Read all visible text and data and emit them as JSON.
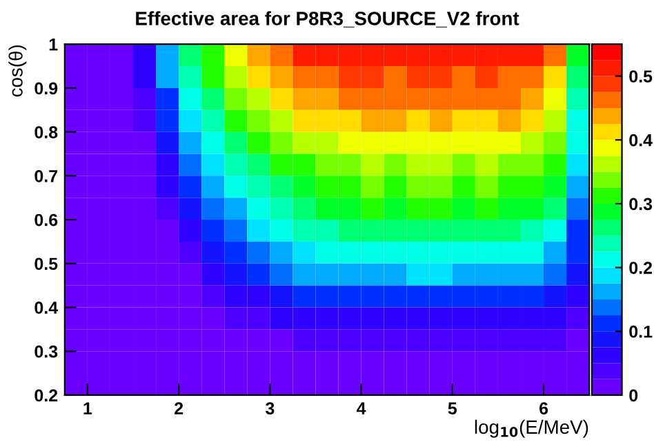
{
  "chart_data": {
    "type": "heatmap",
    "title": "Effective area for P8R3_SOURCE_V2 front",
    "xlabel": "log$_{10}$(E/MeV)",
    "ylabel": "cos(θ)",
    "x": [
      0.875,
      1.125,
      1.375,
      1.625,
      1.875,
      2.125,
      2.375,
      2.625,
      2.875,
      3.125,
      3.375,
      3.625,
      3.875,
      4.125,
      4.375,
      4.625,
      4.875,
      5.125,
      5.375,
      5.625,
      5.875,
      6.125,
      6.375
    ],
    "y": [
      0.975,
      0.925,
      0.875,
      0.825,
      0.775,
      0.725,
      0.675,
      0.625,
      0.575,
      0.525,
      0.475,
      0.425,
      0.375,
      0.325,
      0.275,
      0.225
    ],
    "xlim": [
      0.75,
      6.5
    ],
    "ylim": [
      0.2,
      1.0
    ],
    "xticks": [
      1,
      2,
      3,
      4,
      5,
      6
    ],
    "yticks": [
      0.2,
      0.3,
      0.4,
      0.5,
      0.6,
      0.7,
      0.8,
      0.9,
      1
    ],
    "clim": [
      0,
      0.55
    ],
    "cticks": [
      0,
      0.1,
      0.2,
      0.3,
      0.4,
      0.5
    ],
    "grid": false,
    "cells": [
      [
        0,
        0,
        0.01,
        0.07,
        0.17,
        0.25,
        0.32,
        0.38,
        0.43,
        0.47,
        0.5,
        0.51,
        0.52,
        0.52,
        0.51,
        0.52,
        0.51,
        0.51,
        0.52,
        0.51,
        0.5,
        0.45,
        0.28
      ],
      [
        0,
        0,
        0.01,
        0.05,
        0.15,
        0.23,
        0.3,
        0.36,
        0.4,
        0.44,
        0.46,
        0.47,
        0.48,
        0.48,
        0.47,
        0.48,
        0.48,
        0.47,
        0.48,
        0.47,
        0.47,
        0.42,
        0.26
      ],
      [
        0,
        0,
        0,
        0.04,
        0.12,
        0.2,
        0.27,
        0.33,
        0.37,
        0.41,
        0.43,
        0.44,
        0.45,
        0.46,
        0.45,
        0.45,
        0.46,
        0.45,
        0.45,
        0.45,
        0.44,
        0.39,
        0.24
      ],
      [
        0,
        0,
        0,
        0.03,
        0.1,
        0.18,
        0.24,
        0.3,
        0.34,
        0.37,
        0.4,
        0.41,
        0.42,
        0.43,
        0.43,
        0.42,
        0.43,
        0.42,
        0.42,
        0.43,
        0.41,
        0.37,
        0.22
      ],
      [
        0,
        0,
        0,
        0.02,
        0.08,
        0.15,
        0.21,
        0.26,
        0.3,
        0.33,
        0.36,
        0.37,
        0.38,
        0.39,
        0.39,
        0.39,
        0.38,
        0.39,
        0.39,
        0.38,
        0.37,
        0.33,
        0.2
      ],
      [
        0,
        0,
        0,
        0.01,
        0.06,
        0.13,
        0.18,
        0.23,
        0.27,
        0.3,
        0.32,
        0.34,
        0.35,
        0.36,
        0.35,
        0.36,
        0.36,
        0.35,
        0.36,
        0.35,
        0.34,
        0.31,
        0.18
      ],
      [
        0,
        0,
        0,
        0.01,
        0.05,
        0.11,
        0.16,
        0.2,
        0.24,
        0.27,
        0.29,
        0.31,
        0.32,
        0.33,
        0.32,
        0.33,
        0.33,
        0.32,
        0.33,
        0.32,
        0.31,
        0.28,
        0.16
      ],
      [
        0,
        0,
        0,
        0,
        0.03,
        0.08,
        0.13,
        0.17,
        0.21,
        0.24,
        0.26,
        0.28,
        0.29,
        0.3,
        0.29,
        0.3,
        0.3,
        0.29,
        0.3,
        0.29,
        0.28,
        0.25,
        0.14
      ],
      [
        0,
        0,
        0,
        0,
        0.02,
        0.06,
        0.1,
        0.14,
        0.18,
        0.21,
        0.23,
        0.24,
        0.25,
        0.26,
        0.25,
        0.26,
        0.26,
        0.25,
        0.26,
        0.25,
        0.24,
        0.21,
        0.12
      ],
      [
        0,
        0,
        0,
        0,
        0.01,
        0.04,
        0.08,
        0.11,
        0.14,
        0.17,
        0.19,
        0.2,
        0.21,
        0.22,
        0.22,
        0.22,
        0.22,
        0.21,
        0.22,
        0.21,
        0.2,
        0.17,
        0.1
      ],
      [
        0,
        0,
        0,
        0,
        0,
        0.02,
        0.05,
        0.08,
        0.11,
        0.13,
        0.15,
        0.16,
        0.16,
        0.17,
        0.17,
        0.18,
        0.18,
        0.17,
        0.17,
        0.17,
        0.16,
        0.13,
        0.08
      ],
      [
        0,
        0,
        0,
        0,
        0,
        0.01,
        0.03,
        0.05,
        0.07,
        0.09,
        0.1,
        0.11,
        0.11,
        0.12,
        0.12,
        0.12,
        0.12,
        0.12,
        0.12,
        0.12,
        0.11,
        0.09,
        0.06
      ],
      [
        0,
        0,
        0,
        0,
        0,
        0,
        0.01,
        0.03,
        0.04,
        0.05,
        0.06,
        0.07,
        0.07,
        0.07,
        0.07,
        0.07,
        0.07,
        0.07,
        0.07,
        0.07,
        0.07,
        0.05,
        0.04
      ],
      [
        0,
        0,
        0,
        0,
        0,
        0,
        0,
        0.01,
        0.02,
        0.02,
        0.03,
        0.03,
        0.03,
        0.03,
        0.03,
        0.03,
        0.03,
        0.03,
        0.03,
        0.03,
        0.03,
        0.03,
        0.02
      ],
      [
        0,
        0,
        0,
        0,
        0,
        0,
        0,
        0,
        0.01,
        0.01,
        0.01,
        0.01,
        0.01,
        0.01,
        0.01,
        0.01,
        0.01,
        0.01,
        0.01,
        0.01,
        0.01,
        0.01,
        0.01
      ],
      [
        0,
        0,
        0,
        0,
        0,
        0,
        0,
        0,
        0,
        0,
        0,
        0,
        0,
        0,
        0,
        0,
        0,
        0,
        0,
        0,
        0,
        0,
        0
      ]
    ]
  }
}
